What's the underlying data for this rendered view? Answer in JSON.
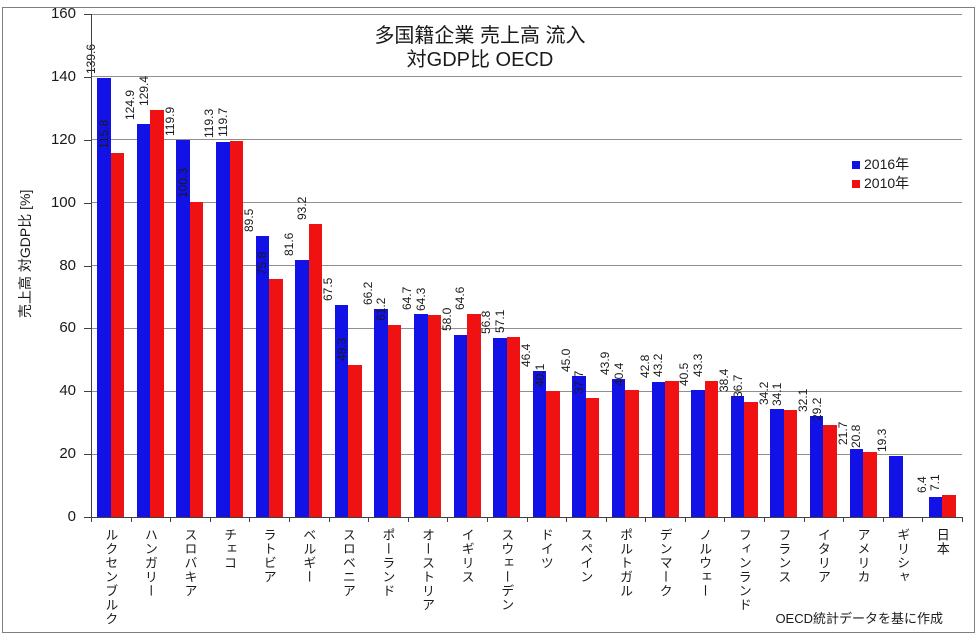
{
  "title": {
    "line1": "多国籍企業 売上高 流入",
    "line2": "対GDP比 OECD"
  },
  "y_axis": {
    "label": "売上高 対GDP比 [%]",
    "ticks": [
      160,
      140,
      120,
      100,
      80,
      60,
      40,
      20,
      0
    ]
  },
  "legend": {
    "items": [
      {
        "label": "2016年",
        "color": "#1212e6"
      },
      {
        "label": "2010年",
        "color": "#f01212"
      }
    ]
  },
  "source_note": "OECD統計データを基に作成",
  "colors": {
    "series_2016": "#1212e6",
    "series_2010": "#f01212",
    "gridline": "#8f8f8f",
    "axis": "#404040",
    "frame": "#7f7f7f",
    "text": "#1a1a1a"
  },
  "chart_data": {
    "type": "bar",
    "title": "多国籍企業 売上高 流入 対GDP比 OECD",
    "xlabel": "",
    "ylabel": "売上高 対GDP比 [%]",
    "ylim": [
      0,
      160
    ],
    "ytick_step": 20,
    "grid": true,
    "legend_position": "right",
    "value_labels": "rotated 90deg, one decimal, above bars",
    "source_note": "OECD統計データを基に作成",
    "categories": [
      "ルクセンブルク",
      "ハンガリー",
      "スロバキア",
      "チェコ",
      "ラトビア",
      "ベルギー",
      "スロベニア",
      "ポーランド",
      "オーストリア",
      "イギリス",
      "スウェーデン",
      "ドイツ",
      "スペイン",
      "ポルトガル",
      "デンマーク",
      "ノルウェー",
      "フィンランド",
      "フランス",
      "イタリア",
      "アメリカ",
      "ギリシャ",
      "日本"
    ],
    "series": [
      {
        "name": "2016年",
        "color": "#1212e6",
        "values": [
          139.6,
          124.9,
          119.9,
          119.3,
          89.5,
          81.6,
          67.5,
          66.2,
          64.7,
          58.0,
          56.8,
          46.4,
          45.0,
          43.9,
          42.8,
          40.5,
          38.4,
          34.2,
          32.1,
          21.7,
          19.3,
          6.4
        ]
      },
      {
        "name": "2010年",
        "color": "#f01212",
        "values": [
          115.8,
          129.4,
          100.3,
          119.7,
          75.8,
          93.2,
          48.3,
          61.2,
          64.3,
          64.6,
          57.1,
          40.1,
          37.7,
          40.4,
          43.2,
          43.3,
          36.7,
          34.1,
          29.2,
          20.8,
          null,
          7.1
        ]
      }
    ]
  }
}
